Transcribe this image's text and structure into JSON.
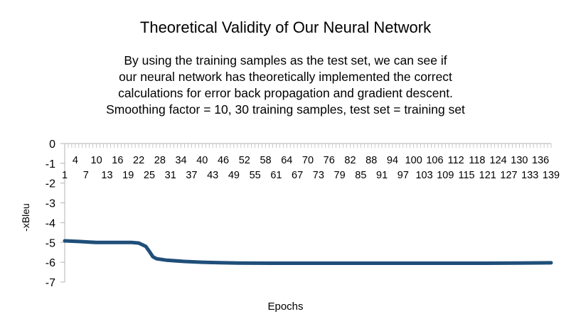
{
  "chart_data": {
    "type": "line",
    "title": "Theoretical Validity of Our Neural Network",
    "subtitle_lines": [
      "By using the training samples as the test set, we can see if",
      "our neural network has theoretically implemented the correct",
      "calculations for error back propagation and gradient descent.",
      "Smoothing factor = 10, 30 training samples, test set = training set"
    ],
    "xlabel": "Epochs",
    "ylabel": "-xBleu",
    "ylim": [
      -7,
      0
    ],
    "yticks": [
      0,
      -1,
      -2,
      -3,
      -4,
      -5,
      -6,
      -7
    ],
    "x_tick_labels_row1": [
      4,
      10,
      16,
      22,
      28,
      34,
      40,
      46,
      52,
      58,
      64,
      70,
      76,
      82,
      88,
      94,
      100,
      106,
      112,
      118,
      124,
      130,
      136
    ],
    "x_tick_labels_row2": [
      1,
      7,
      13,
      19,
      25,
      31,
      37,
      43,
      49,
      55,
      61,
      67,
      73,
      79,
      85,
      91,
      97,
      103,
      109,
      115,
      121,
      127,
      133,
      139
    ],
    "series": [
      {
        "color": "#1f4e79",
        "points": [
          [
            1,
            -4.92
          ],
          [
            5,
            -4.95
          ],
          [
            10,
            -5.0
          ],
          [
            15,
            -5.0
          ],
          [
            20,
            -5.0
          ],
          [
            22,
            -5.03
          ],
          [
            24,
            -5.2
          ],
          [
            25,
            -5.45
          ],
          [
            26,
            -5.72
          ],
          [
            27,
            -5.82
          ],
          [
            30,
            -5.9
          ],
          [
            35,
            -5.96
          ],
          [
            40,
            -6.0
          ],
          [
            45,
            -6.02
          ],
          [
            50,
            -6.04
          ],
          [
            60,
            -6.05
          ],
          [
            70,
            -6.05
          ],
          [
            80,
            -6.05
          ],
          [
            90,
            -6.05
          ],
          [
            100,
            -6.05
          ],
          [
            110,
            -6.05
          ],
          [
            120,
            -6.05
          ],
          [
            130,
            -6.04
          ],
          [
            139,
            -6.03
          ]
        ]
      }
    ]
  }
}
